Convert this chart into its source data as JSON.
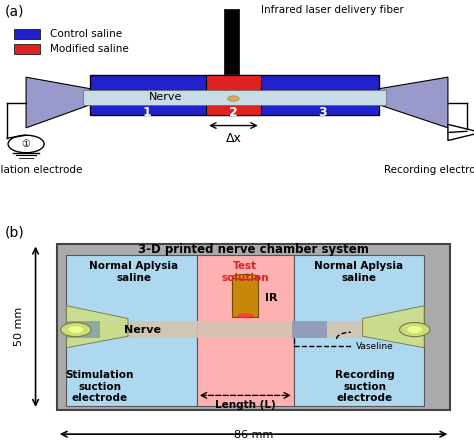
{
  "fig_width": 4.74,
  "fig_height": 4.43,
  "dpi": 100,
  "blue_color": "#2222cc",
  "light_blue_color": "#9999cc",
  "red_color": "#dd2222",
  "nerve_color": "#d4c4b0",
  "nerve_light": "#e8ddd0",
  "green_electrode_color": "#ccdd88",
  "green_electrode_inner": "#ddee99",
  "pink_solution_color": "#ffb0b0",
  "light_blue_chamber": "#add8f0",
  "gray_chamber": "#aaaaaa",
  "gray_inner": "#c8c8c8",
  "gold_color": "#c8860a",
  "gold_light": "#e8a828",
  "panel_a_label": "(a)",
  "panel_b_label": "(b)",
  "legend_blue": "Control saline",
  "legend_red": "Modified saline",
  "fiber_label": "Infrared laser delivery fiber",
  "stim_label": "Stimulation electrode",
  "rec_label": "Recording electrode",
  "delta_x": "Δx",
  "chamber_title": "3-D printed nerve chamber system",
  "normal_saline_label": "Normal Aplysia\nsaline",
  "test_solution_label": "Test\nsolution",
  "ir_label": "IR",
  "nerve_label": "Nerve",
  "stim_suction_label": "Stimulation\nsuction\nelectrode",
  "rec_suction_label": "Recording\nsuction\nelectrode",
  "vaseline_label": "Vaseline",
  "length_label": "Length (L)",
  "dim_50mm": "50 mm",
  "dim_86mm": "86 mm"
}
